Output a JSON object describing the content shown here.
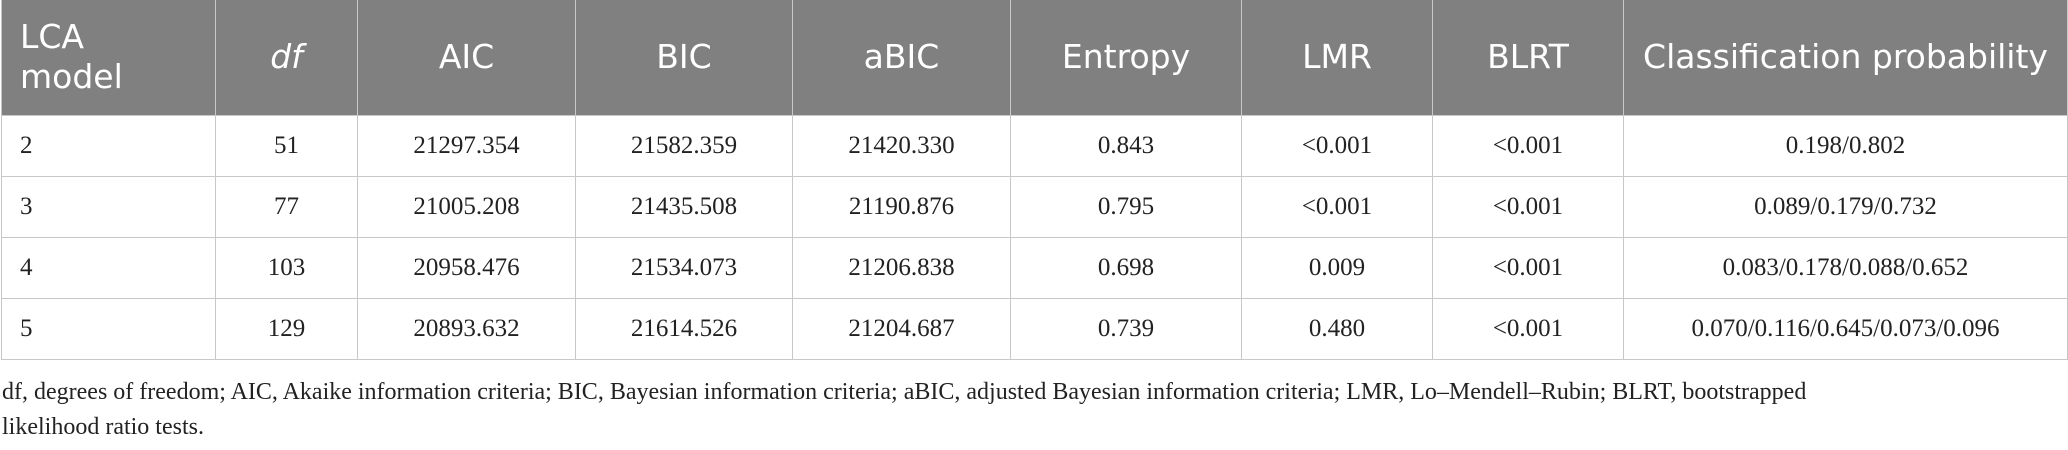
{
  "table": {
    "header": [
      "LCA model",
      "df",
      "AIC",
      "BIC",
      "aBIC",
      "Entropy",
      "LMR",
      "BLRT",
      "Classification probability"
    ],
    "rows": [
      [
        "2",
        "51",
        "21297.354",
        "21582.359",
        "21420.330",
        "0.843",
        "<0.001",
        "<0.001",
        "0.198/0.802"
      ],
      [
        "3",
        "77",
        "21005.208",
        "21435.508",
        "21190.876",
        "0.795",
        "<0.001",
        "<0.001",
        "0.089/0.179/0.732"
      ],
      [
        "4",
        "103",
        "20958.476",
        "21534.073",
        "21206.838",
        "0.698",
        "0.009",
        "<0.001",
        "0.083/0.178/0.088/0.652"
      ],
      [
        "5",
        "129",
        "20893.632",
        "21614.526",
        "21204.687",
        "0.739",
        "0.480",
        "<0.001",
        "0.070/0.116/0.645/0.073/0.096"
      ]
    ]
  },
  "footnote": "df, degrees of freedom; AIC, Akaike information criteria; BIC, Bayesian information criteria; aBIC, adjusted Bayesian information criteria; LMR, Lo–Mendell–Rubin; BLRT, bootstrapped likelihood ratio tests."
}
